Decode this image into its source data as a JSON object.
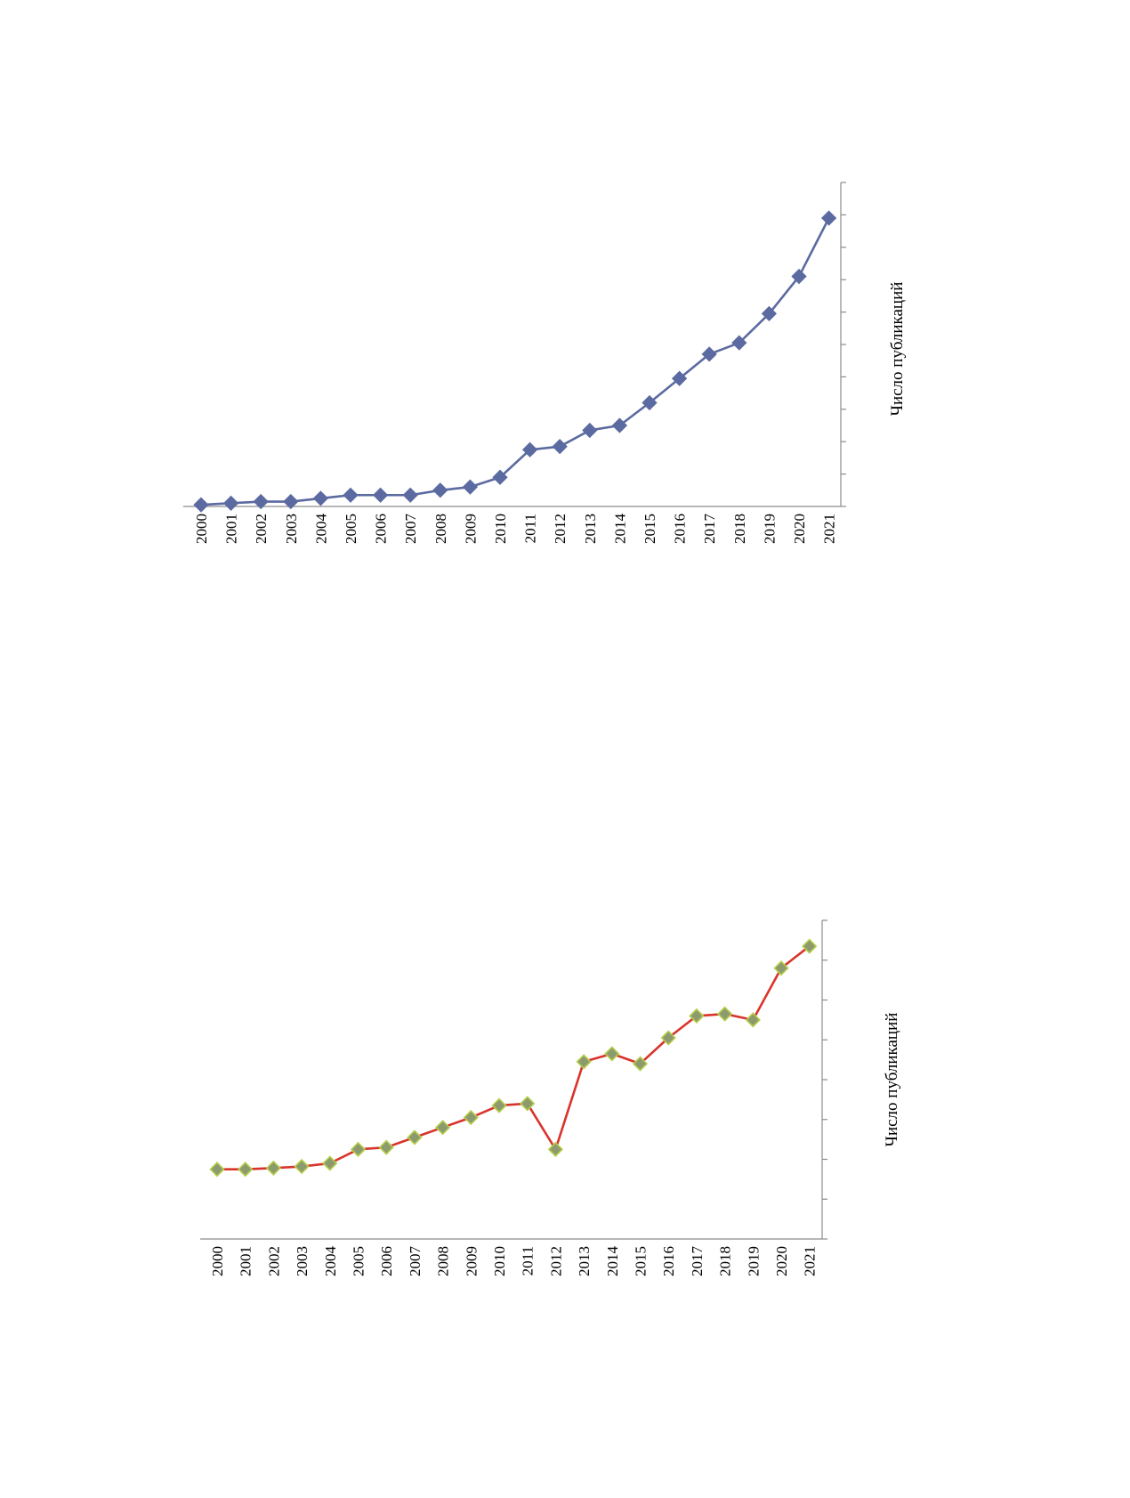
{
  "chart_data": [
    {
      "type": "line",
      "title": "",
      "xlabel": "",
      "ylabel": "Число публикаций",
      "categories": [
        "2000",
        "2001",
        "2002",
        "2003",
        "2004",
        "2005",
        "2006",
        "2007",
        "2008",
        "2009",
        "2010",
        "2011",
        "2012",
        "2013",
        "2014",
        "2015",
        "2016",
        "2017",
        "2018",
        "2019",
        "2020",
        "2021"
      ],
      "ylim": [
        0,
        10
      ],
      "y_tick_count": 10,
      "y_tick_labels_visible": false,
      "series": [
        {
          "values": [
            0.05,
            0.1,
            0.15,
            0.15,
            0.25,
            0.35,
            0.35,
            0.35,
            0.5,
            0.6,
            0.9,
            1.75,
            1.85,
            2.35,
            2.5,
            3.2,
            3.95,
            4.7,
            5.05,
            5.95,
            7.1,
            8.9
          ],
          "line_color": "#5b6aa0",
          "marker": "diamond",
          "marker_fill": "#5b6aa0",
          "marker_stroke": "#5b6aa0"
        }
      ],
      "grid": false,
      "legend": "none",
      "orientation": "rotated-90-ccw"
    },
    {
      "type": "line",
      "title": "",
      "xlabel": "",
      "ylabel": "Число публикаций",
      "categories": [
        "2000",
        "2001",
        "2002",
        "2003",
        "2004",
        "2005",
        "2006",
        "2007",
        "2008",
        "2009",
        "2010",
        "2011",
        "2012",
        "2013",
        "2014",
        "2015",
        "2016",
        "2017",
        "2018",
        "2019",
        "2020",
        "2021"
      ],
      "ylim": [
        0,
        8
      ],
      "y_tick_count": 8,
      "y_tick_labels_visible": false,
      "series": [
        {
          "values": [
            1.75,
            1.75,
            1.78,
            1.82,
            1.9,
            2.25,
            2.3,
            2.55,
            2.8,
            3.05,
            3.35,
            3.4,
            2.25,
            4.45,
            4.65,
            4.4,
            5.05,
            5.6,
            5.65,
            5.5,
            6.8,
            7.35
          ],
          "line_color": "#d9342b",
          "marker": "diamond",
          "marker_fill": "#8c9a6e",
          "marker_stroke": "#b5cf4a"
        }
      ],
      "grid": false,
      "legend": "none",
      "orientation": "rotated-90-ccw"
    }
  ]
}
